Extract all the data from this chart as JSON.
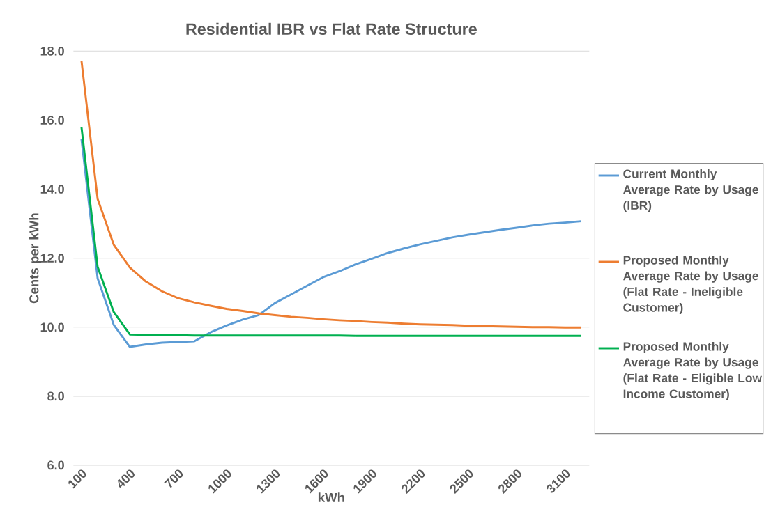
{
  "chart_data": {
    "type": "line",
    "title": "Residential IBR vs Flat Rate Structure",
    "xlabel": "kWh",
    "ylabel": "Cents per kWh",
    "categories": [
      "100",
      null,
      null,
      "400",
      null,
      null,
      "700",
      null,
      null,
      "1000",
      null,
      null,
      "1300",
      null,
      null,
      "1600",
      null,
      null,
      "1900",
      null,
      null,
      "2200",
      null,
      null,
      "2500",
      null,
      null,
      "2800",
      null,
      null,
      "3100",
      null
    ],
    "ylim": [
      6,
      18
    ],
    "yticks": [
      {
        "value": 6,
        "label": "6.0"
      },
      {
        "value": 8,
        "label": "8.0"
      },
      {
        "value": 10,
        "label": "10.0"
      },
      {
        "value": 12,
        "label": "12.0"
      },
      {
        "value": 14,
        "label": "14.0"
      },
      {
        "value": 16,
        "label": "16.0"
      },
      {
        "value": 18,
        "label": "18.0"
      }
    ],
    "grid": "y",
    "legend": "right",
    "series": [
      {
        "name": "Current Monthly Average Rate by Usage (IBR)",
        "color": "#5b9bd5",
        "values": [
          15.45,
          11.42,
          10.07,
          9.43,
          9.5,
          9.55,
          9.57,
          9.59,
          9.85,
          10.05,
          10.22,
          10.35,
          10.7,
          10.95,
          11.2,
          11.45,
          11.62,
          11.82,
          11.98,
          12.15,
          12.28,
          12.4,
          12.5,
          12.6,
          12.68,
          12.75,
          12.82,
          12.88,
          12.95,
          13.0,
          13.03,
          13.07
        ]
      },
      {
        "name": "Proposed Monthly Average Rate by Usage (Flat Rate - Ineligible Customer)",
        "color": "#ed7d31",
        "values": [
          17.72,
          13.72,
          12.39,
          11.73,
          11.32,
          11.04,
          10.84,
          10.72,
          10.62,
          10.53,
          10.47,
          10.4,
          10.35,
          10.3,
          10.27,
          10.23,
          10.2,
          10.18,
          10.15,
          10.13,
          10.1,
          10.08,
          10.07,
          10.06,
          10.04,
          10.03,
          10.02,
          10.01,
          10.0,
          10.0,
          9.99,
          9.99
        ]
      },
      {
        "name": "Proposed Monthly Average Rate by Usage (Flat Rate - Eligible Low Income Customer)",
        "color": "#00b050",
        "values": [
          15.8,
          11.75,
          10.44,
          9.79,
          9.78,
          9.77,
          9.77,
          9.76,
          9.76,
          9.76,
          9.76,
          9.76,
          9.76,
          9.76,
          9.76,
          9.76,
          9.76,
          9.75,
          9.75,
          9.75,
          9.75,
          9.75,
          9.75,
          9.75,
          9.75,
          9.75,
          9.75,
          9.75,
          9.75,
          9.75,
          9.75,
          9.75
        ]
      }
    ]
  }
}
